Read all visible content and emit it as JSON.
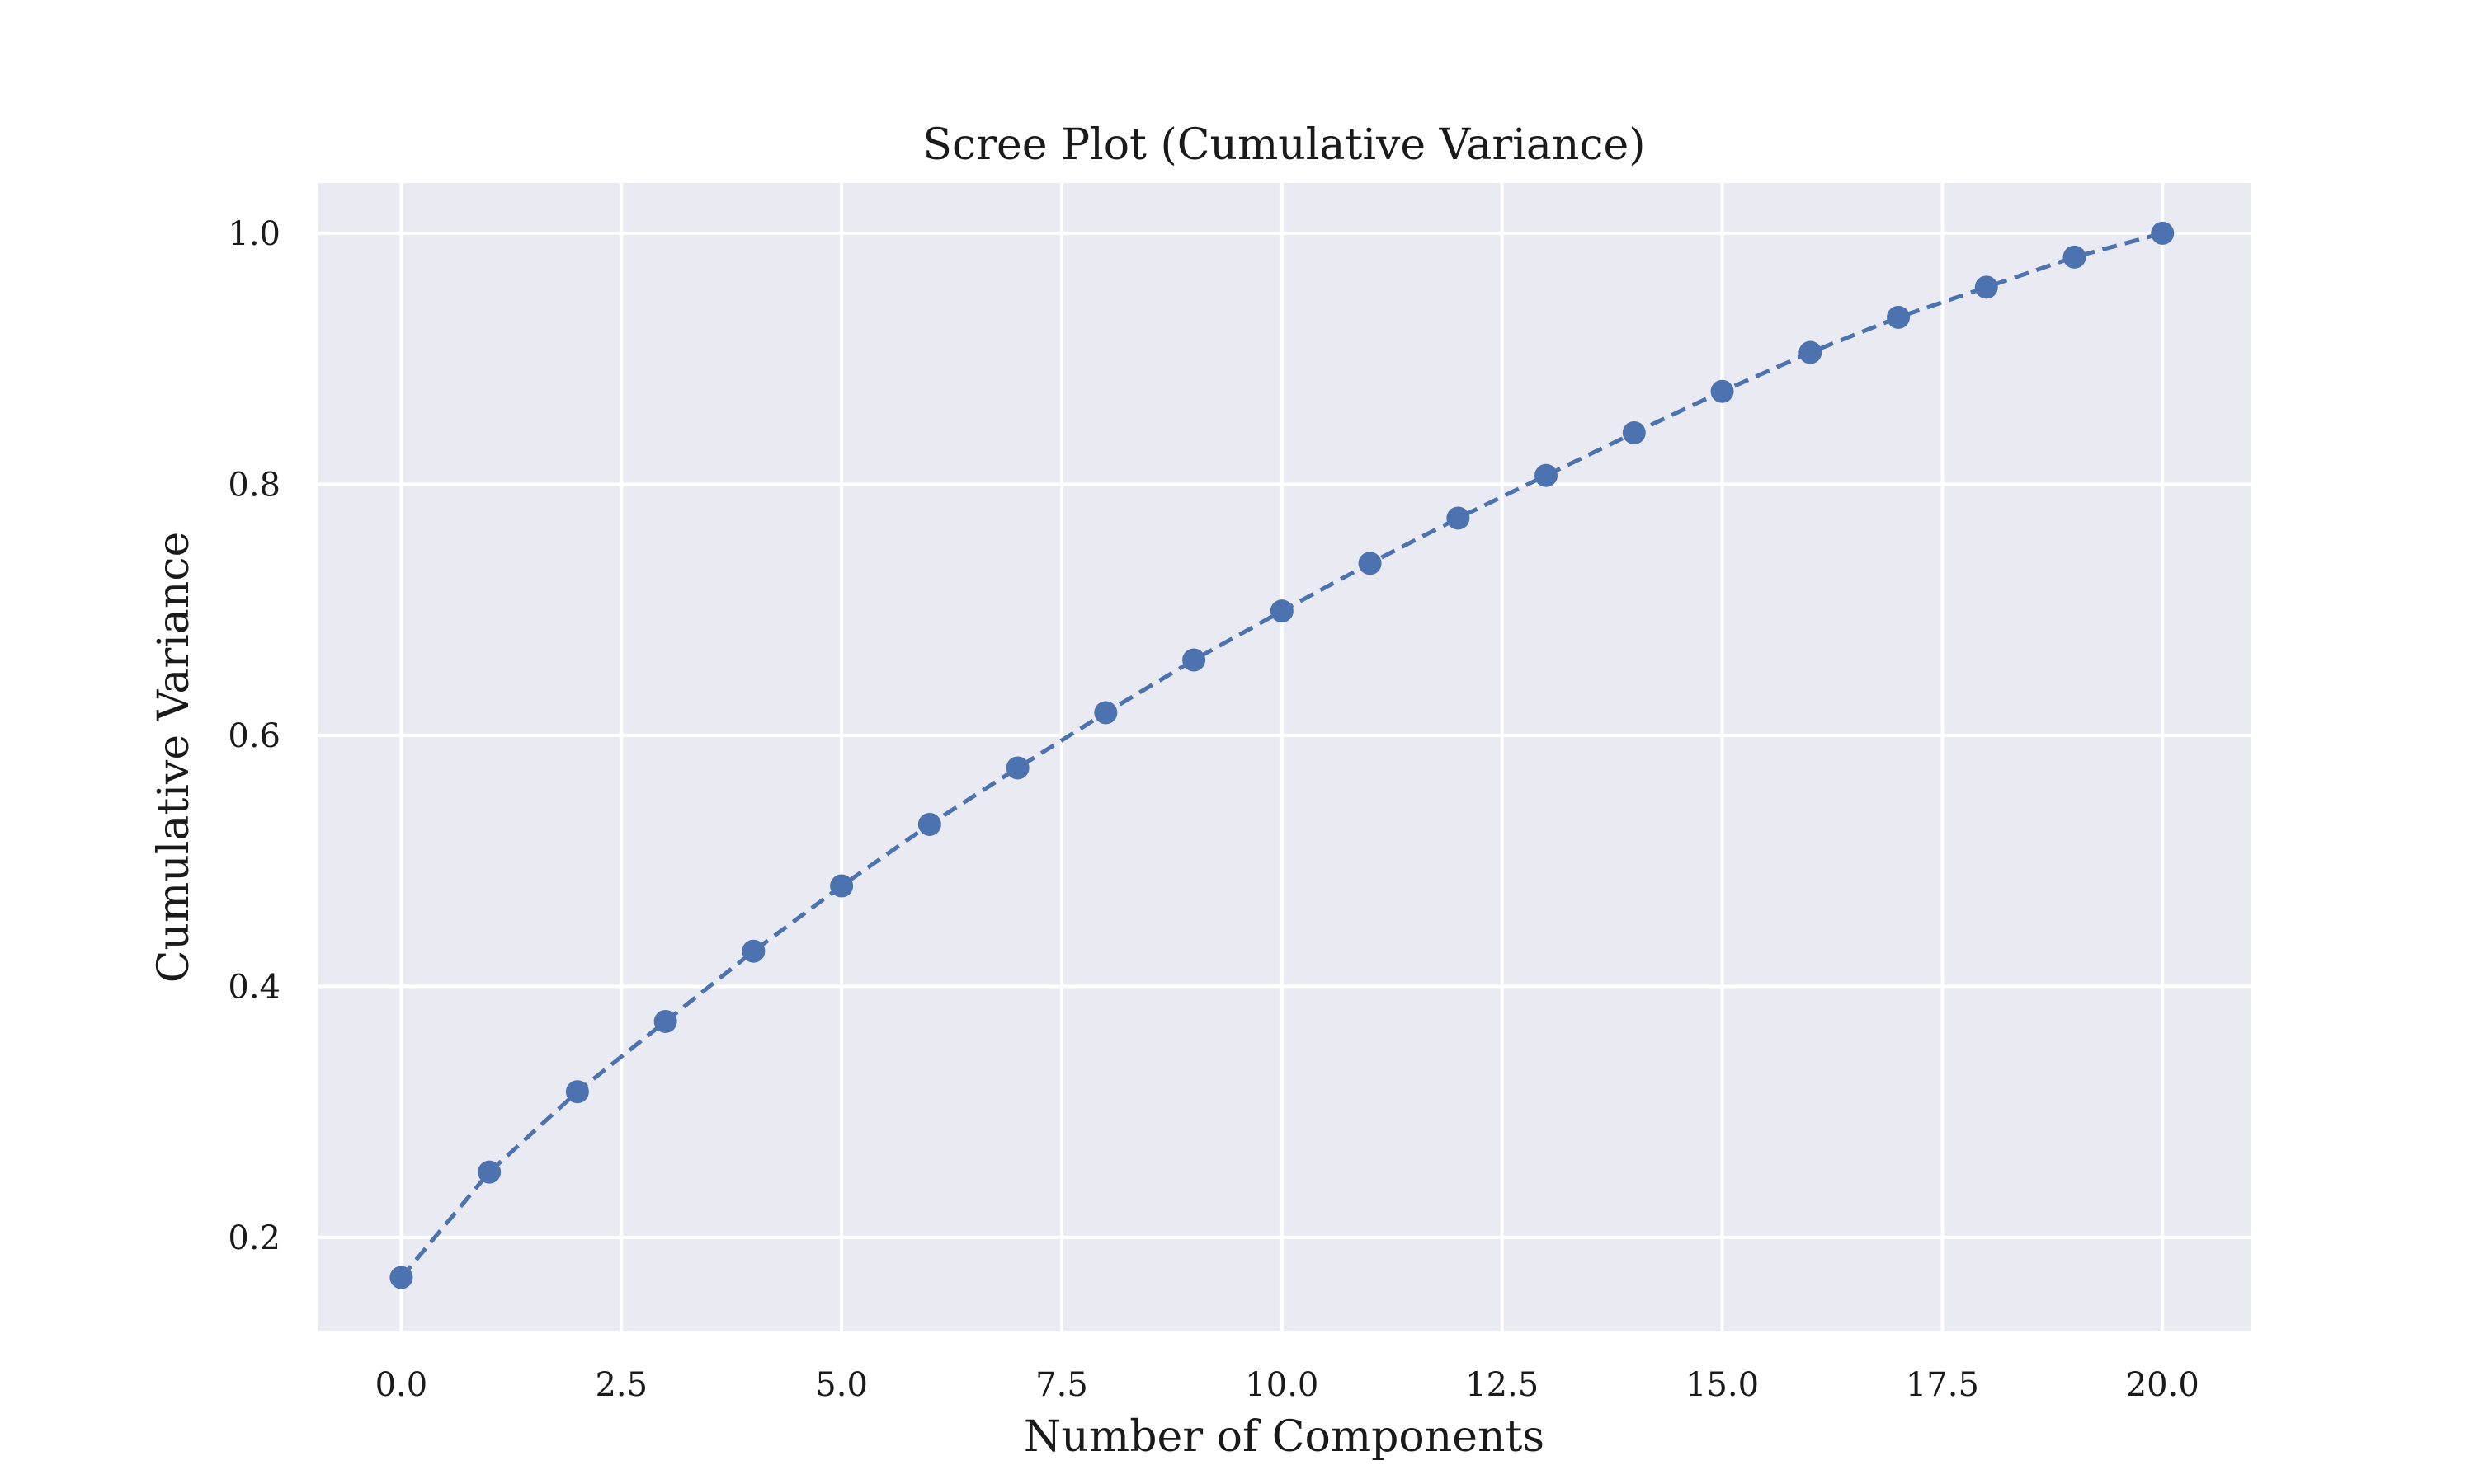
{
  "chart_data": {
    "type": "line",
    "title": "Scree Plot (Cumulative Variance)",
    "xlabel": "Number of Components",
    "ylabel": "Cumulative Variance",
    "xlim": [
      -0.95,
      21.0
    ],
    "ylim": [
      0.125,
      1.04
    ],
    "xticks": [
      0.0,
      2.5,
      5.0,
      7.5,
      10.0,
      12.5,
      15.0,
      17.5,
      20.0
    ],
    "xtick_labels": [
      "0.0",
      "2.5",
      "5.0",
      "7.5",
      "10.0",
      "12.5",
      "15.0",
      "17.5",
      "20.0"
    ],
    "yticks": [
      0.2,
      0.4,
      0.6,
      0.8,
      1.0
    ],
    "ytick_labels": [
      "0.2",
      "0.4",
      "0.6",
      "0.8",
      "1.0"
    ],
    "grid": true,
    "line_style": "dashed",
    "marker": "circle",
    "series_color": "#4c72b0",
    "background_color": "#eaeaf2",
    "x": [
      0,
      1,
      2,
      3,
      4,
      5,
      6,
      7,
      8,
      9,
      10,
      11,
      12,
      13,
      14,
      15,
      16,
      17,
      18,
      19,
      20
    ],
    "y": [
      0.168,
      0.252,
      0.316,
      0.372,
      0.428,
      0.48,
      0.529,
      0.574,
      0.618,
      0.66,
      0.699,
      0.737,
      0.773,
      0.807,
      0.841,
      0.874,
      0.905,
      0.933,
      0.957,
      0.981,
      1.0
    ]
  }
}
